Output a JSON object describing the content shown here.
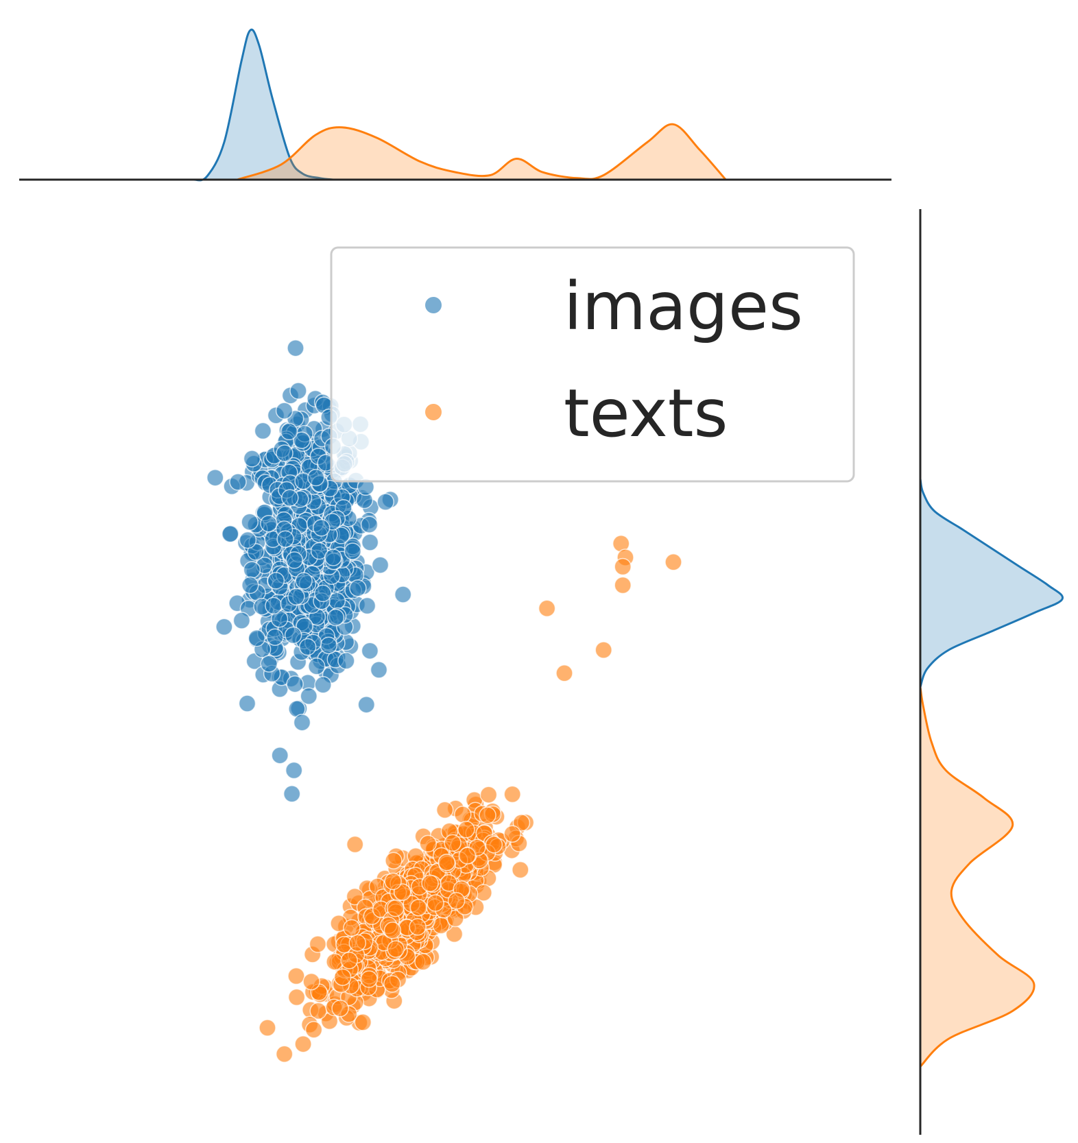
{
  "chart_data": {
    "type": "scatter",
    "title": "",
    "xlabel": "",
    "ylabel": "",
    "xlim": [
      0,
      100
    ],
    "ylim": [
      0,
      100
    ],
    "axes_visible": false,
    "grid": false,
    "legend": {
      "placement": "top-right",
      "entries": [
        "images",
        "texts"
      ]
    },
    "marginals": {
      "top": "kde",
      "right": "kde"
    },
    "series": [
      {
        "name": "images",
        "color": "#1f77b4",
        "cluster": {
          "x_center": 33,
          "y_center": 63,
          "x_spread": 5.5,
          "y_spread": 12,
          "correlation": 0.0
        },
        "outliers": [
          [
            23.5,
            54.5
          ],
          [
            32,
            80
          ],
          [
            42,
            68
          ],
          [
            44,
            58
          ],
          [
            36,
            62
          ],
          [
            31.5,
            39
          ]
        ],
        "kde_x": [
          [
            20,
            0
          ],
          [
            21.5,
            2
          ],
          [
            23.5,
            25
          ],
          [
            25.5,
            80
          ],
          [
            26.5,
            100
          ],
          [
            27.5,
            90
          ],
          [
            29,
            55
          ],
          [
            31,
            15
          ],
          [
            32.5,
            4
          ],
          [
            34.5,
            1
          ],
          [
            36,
            0
          ]
        ],
        "kde_y": [
          [
            48,
            0
          ],
          [
            50,
            5
          ],
          [
            52,
            20
          ],
          [
            54,
            50
          ],
          [
            56,
            80
          ],
          [
            57.5,
            100
          ],
          [
            59,
            90
          ],
          [
            61,
            70
          ],
          [
            63,
            50
          ],
          [
            65,
            30
          ],
          [
            67,
            10
          ],
          [
            69,
            2
          ],
          [
            70.5,
            0
          ]
        ]
      },
      {
        "name": "texts",
        "color": "#ff7f0e",
        "cluster": {
          "x_center": 45,
          "y_center": 24,
          "x_spread": 8,
          "y_spread": 8,
          "correlation": 0.8
        },
        "outliers": [
          [
            69,
            63.5
          ],
          [
            69.5,
            62
          ],
          [
            69.2,
            61
          ],
          [
            75,
            61.5
          ],
          [
            69.2,
            59
          ],
          [
            60.5,
            56.5
          ],
          [
            67,
            52
          ],
          [
            62.5,
            49.5
          ],
          [
            38.5,
            31
          ]
        ],
        "kde_x": [
          [
            25,
            0
          ],
          [
            30,
            10
          ],
          [
            34,
            30
          ],
          [
            37,
            35
          ],
          [
            41,
            28
          ],
          [
            46,
            12
          ],
          [
            50,
            5
          ],
          [
            54,
            3
          ],
          [
            57,
            14
          ],
          [
            60,
            5
          ],
          [
            64,
            1
          ],
          [
            67,
            3
          ],
          [
            72,
            25
          ],
          [
            75,
            37
          ],
          [
            78,
            20
          ],
          [
            81,
            0
          ]
        ],
        "kde_y": [
          [
            7,
            0
          ],
          [
            10,
            20
          ],
          [
            13,
            65
          ],
          [
            16,
            80
          ],
          [
            19,
            55
          ],
          [
            23,
            30
          ],
          [
            26,
            22
          ],
          [
            29,
            35
          ],
          [
            33,
            65
          ],
          [
            36,
            45
          ],
          [
            39,
            18
          ],
          [
            42,
            8
          ],
          [
            46,
            2
          ],
          [
            48,
            0
          ]
        ]
      }
    ]
  }
}
